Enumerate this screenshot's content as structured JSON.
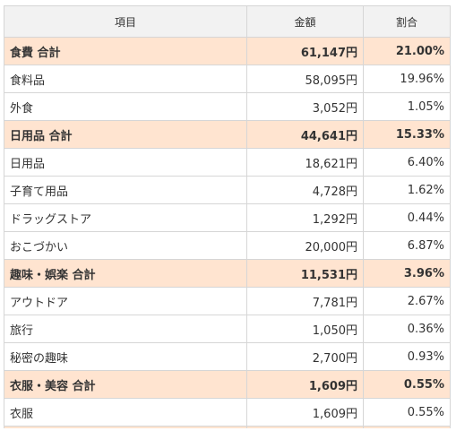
{
  "table": {
    "headers": [
      "項目",
      "金額",
      "割合"
    ],
    "rows": [
      {
        "kind": "subtotal",
        "item": "食費 合計",
        "amount": "61,147円",
        "ratio": "21.00%"
      },
      {
        "kind": "detail",
        "item": "食料品",
        "amount": "58,095円",
        "ratio": "19.96%"
      },
      {
        "kind": "detail",
        "item": "外食",
        "amount": "3,052円",
        "ratio": "1.05%"
      },
      {
        "kind": "subtotal",
        "item": "日用品 合計",
        "amount": "44,641円",
        "ratio": "15.33%"
      },
      {
        "kind": "detail",
        "item": "日用品",
        "amount": "18,621円",
        "ratio": "6.40%"
      },
      {
        "kind": "detail",
        "item": "子育て用品",
        "amount": "4,728円",
        "ratio": "1.62%"
      },
      {
        "kind": "detail",
        "item": "ドラッグストア",
        "amount": "1,292円",
        "ratio": "0.44%"
      },
      {
        "kind": "detail",
        "item": "おこづかい",
        "amount": "20,000円",
        "ratio": "6.87%"
      },
      {
        "kind": "subtotal",
        "item": "趣味・娯楽 合計",
        "amount": "11,531円",
        "ratio": "3.96%"
      },
      {
        "kind": "detail",
        "item": "アウトドア",
        "amount": "7,781円",
        "ratio": "2.67%"
      },
      {
        "kind": "detail",
        "item": "旅行",
        "amount": "1,050円",
        "ratio": "0.36%"
      },
      {
        "kind": "detail",
        "item": "秘密の趣味",
        "amount": "2,700円",
        "ratio": "0.93%"
      },
      {
        "kind": "subtotal",
        "item": "衣服・美容 合計",
        "amount": "1,609円",
        "ratio": "0.55%"
      },
      {
        "kind": "detail",
        "item": "衣服",
        "amount": "1,609円",
        "ratio": "0.55%"
      }
    ]
  }
}
